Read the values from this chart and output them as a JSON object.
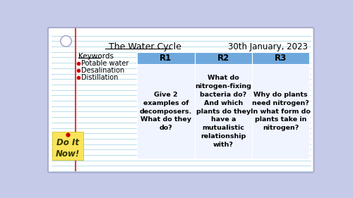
{
  "title": "The Water Cycle",
  "date": "30th January, 2023",
  "background_outer": "#c5cae9",
  "background_notebook": "#ffffff",
  "notebook_lines_color": "#add8e6",
  "red_line_color": "#e53935",
  "header_bg": "#6fa8dc",
  "keywords_title": "Keywords",
  "keywords_items": [
    "Potable water",
    "Desalination",
    "Distillation"
  ],
  "bullet_color": "#cc0000",
  "col_headers": [
    "R1",
    "R2",
    "R3"
  ],
  "col_texts": [
    "Give 2\nexamples of\ndecomposers.\nWhat do they\ndo?",
    "What do\nnitrogen-fixing\nbacteria do?\nAnd which\nplants do they\nhave a\nmutualistic\nrelationship\nwith?",
    "Why do plants\nneed nitrogen?\nIn what form do\nplants take in\nnitrogen?"
  ],
  "sticky_bg": "#f9e45a",
  "sticky_text": "Do It\nNow!",
  "sticky_dot_color": "#cc0000",
  "table_border_color": "#ffffff",
  "cell_bg": "#f0f4ff"
}
